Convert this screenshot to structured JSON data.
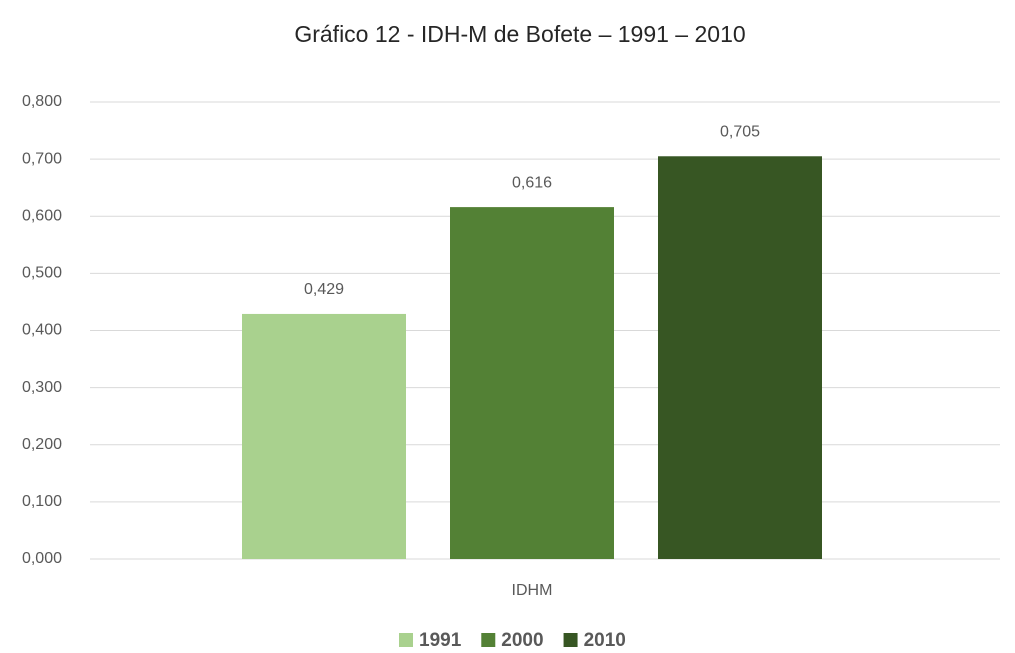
{
  "chart_data": {
    "type": "bar",
    "title": "Gráfico 12 - IDH-M de Bofete – 1991 – 2010",
    "categories": [
      "IDHM"
    ],
    "series": [
      {
        "name": "1991",
        "color": "#a9d18e",
        "values": [
          0.429
        ],
        "value_labels": [
          "0,429"
        ]
      },
      {
        "name": "2000",
        "color": "#538135",
        "values": [
          0.616
        ],
        "value_labels": [
          "0,616"
        ]
      },
      {
        "name": "2010",
        "color": "#375623",
        "values": [
          0.705
        ],
        "value_labels": [
          "0,705"
        ]
      }
    ],
    "ylim": [
      0,
      0.8
    ],
    "yticks": [
      {
        "value": 0,
        "label": "0,000"
      },
      {
        "value": 0.1,
        "label": "0,100"
      },
      {
        "value": 0.2,
        "label": "0,200"
      },
      {
        "value": 0.3,
        "label": "0,300"
      },
      {
        "value": 0.4,
        "label": "0,400"
      },
      {
        "value": 0.5,
        "label": "0,500"
      },
      {
        "value": 0.6,
        "label": "0,600"
      },
      {
        "value": 0.7,
        "label": "0,700"
      },
      {
        "value": 0.8,
        "label": "0,800"
      }
    ],
    "grid": true,
    "legend": "bottom"
  }
}
